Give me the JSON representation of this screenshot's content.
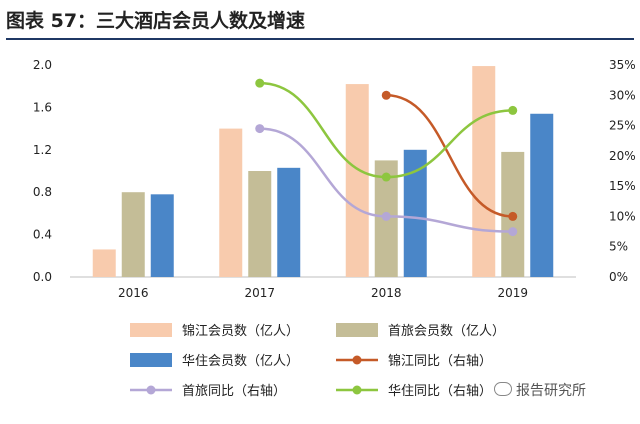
{
  "title": "图表 57：三大酒店会员人数及增速",
  "watermark": "报告研究所",
  "chart_data": {
    "type": "bar",
    "categories": [
      "2016",
      "2017",
      "2018",
      "2019"
    ],
    "y_left": {
      "ticks": [
        "0.0",
        "0.4",
        "0.8",
        "1.2",
        "1.6",
        "2.0"
      ],
      "ylim": [
        0,
        2.0
      ]
    },
    "y_right": {
      "ticks": [
        "0%",
        "5%",
        "10%",
        "15%",
        "20%",
        "25%",
        "30%",
        "35%"
      ],
      "ylim": [
        0,
        35
      ]
    },
    "bar_series": [
      {
        "name": "锦江会员数（亿人）",
        "color": "#f8cbad",
        "values": [
          0.26,
          1.4,
          1.82,
          1.99
        ]
      },
      {
        "name": "首旅会员数（亿人）",
        "color": "#c4bd97",
        "values": [
          0.8,
          1.0,
          1.1,
          1.18
        ]
      },
      {
        "name": "华住会员数（亿人）",
        "color": "#4a86c8",
        "values": [
          0.78,
          1.03,
          1.2,
          1.54
        ]
      }
    ],
    "line_series": [
      {
        "name": "锦江同比（右轴）",
        "color": "#c55a28",
        "values": [
          null,
          null,
          30.0,
          10.0
        ]
      },
      {
        "name": "首旅同比（右轴）",
        "color": "#b4a7d6",
        "values": [
          null,
          24.5,
          10.0,
          7.5
        ]
      },
      {
        "name": "华住同比（右轴）",
        "color": "#8dc63f",
        "values": [
          null,
          32.0,
          16.5,
          27.5
        ]
      }
    ],
    "legend_order": [
      [
        "锦江会员数（亿人）",
        "首旅会员数（亿人）"
      ],
      [
        "华住会员数（亿人）",
        "锦江同比（右轴）"
      ],
      [
        "首旅同比（右轴）",
        "华住同比（右轴）"
      ]
    ],
    "xlabel": "",
    "ylabel": "",
    "grid": false
  }
}
